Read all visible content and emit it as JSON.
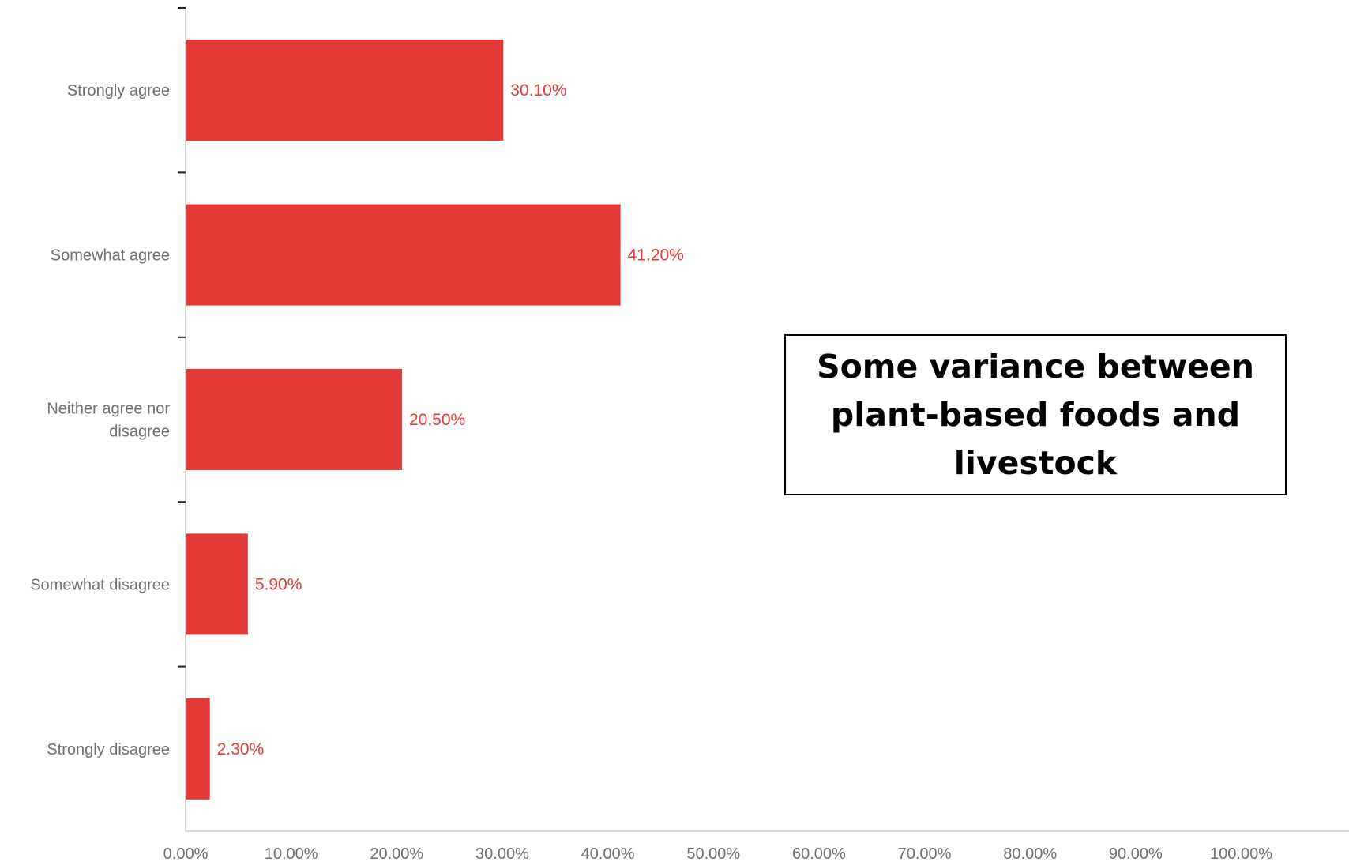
{
  "chart_data": {
    "type": "bar",
    "orientation": "horizontal",
    "categories": [
      "Strongly agree",
      "Somewhat agree",
      "Neither agree nor disagree",
      "Somewhat disagree",
      "Strongly disagree"
    ],
    "category_label_lines": [
      [
        "Strongly agree"
      ],
      [
        "Somewhat agree"
      ],
      [
        "Neither agree nor",
        "disagree"
      ],
      [
        "Somewhat disagree"
      ],
      [
        "Strongly disagree"
      ]
    ],
    "values": [
      30.1,
      41.2,
      20.5,
      5.9,
      2.3
    ],
    "value_labels": [
      "30.10%",
      "41.20%",
      "20.50%",
      "5.90%",
      "2.30%"
    ],
    "xlim": [
      0,
      100
    ],
    "x_ticks": [
      0,
      10,
      20,
      30,
      40,
      50,
      60,
      70,
      80,
      90,
      100
    ],
    "x_tick_labels": [
      "0.00%",
      "10.00%",
      "20.00%",
      "30.00%",
      "40.00%",
      "50.00%",
      "60.00%",
      "70.00%",
      "80.00%",
      "90.00%",
      "100.00%"
    ],
    "bar_color": "#e43a37",
    "label_color": "#e43a37",
    "axis_color": "#c8c8c8",
    "grid": false,
    "legend": false,
    "title": "",
    "xlabel": "",
    "ylabel": ""
  },
  "callout": {
    "text": "Some variance between plant-based foods and livestock"
  }
}
